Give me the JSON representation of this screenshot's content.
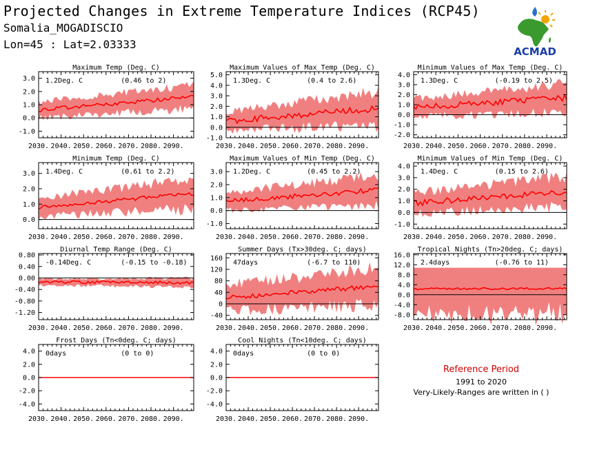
{
  "header": {
    "title": "Projected Changes in Extreme Temperature Indices (RCP45)",
    "location": "Somalia_MOGADISCIO",
    "coords": "Lon=45 : Lat=2.03333"
  },
  "logo": {
    "text": "ACMAD",
    "icon": "africa-map-with-raindrop-and-sun-icon",
    "colors": {
      "africa": "#3a9a2e",
      "text": "#1a3ea8",
      "sun": "#f0a400",
      "drop": "#2a6fd0"
    }
  },
  "reference": {
    "title": "Reference Period",
    "period": "1991 to 2020",
    "note": "Very-Likely-Ranges are written in ( )"
  },
  "colors": {
    "band": "#f08080",
    "line": "#ff0000",
    "zero": "#000000"
  },
  "chart_data": [
    {
      "type": "area",
      "title": "Maximum Temp (Deg. C)",
      "value": "1.2Deg. C",
      "range": "(0.46 to 2)",
      "xticks": [
        "2030.",
        "2040.",
        "2050.",
        "2060.",
        "2070.",
        "2080.",
        "2090."
      ],
      "xlim": [
        2030,
        2099
      ],
      "yticks": [
        "-1.0",
        "0.0",
        "1.0",
        "2.0",
        "3.0"
      ],
      "ylim": [
        -1.5,
        3.5
      ],
      "trend": {
        "start": 0.6,
        "end": 1.6
      },
      "spread": {
        "start": 0.6,
        "end": 0.9
      },
      "noise": 0.15
    },
    {
      "type": "area",
      "title": "Maximum Values of Max Temp (Deg. C)",
      "value": "1.3Deg. C",
      "range": "(0.4 to 2.6)",
      "xticks": [
        "2030.",
        "2040.",
        "2050.",
        "2060.",
        "2070.",
        "2080.",
        "2090."
      ],
      "xlim": [
        2030,
        2099
      ],
      "yticks": [
        "-1.0",
        "0.0",
        "1.0",
        "2.0",
        "3.0",
        "4.0",
        "5.0"
      ],
      "ylim": [
        -1.0,
        5.3
      ],
      "trend": {
        "start": 0.6,
        "end": 1.8
      },
      "spread": {
        "start": 0.9,
        "end": 1.6
      },
      "noise": 0.3
    },
    {
      "type": "area",
      "title": "Minimum Values of Max Temp (Deg. C)",
      "value": "1.3Deg. C",
      "range": "(-0.19 to 2.5)",
      "xticks": [
        "2030.",
        "2040.",
        "2050.",
        "2060.",
        "2070.",
        "2080.",
        "2090."
      ],
      "xlim": [
        2030,
        2099
      ],
      "yticks": [
        "-2.0",
        "-1.0",
        "0.0",
        "1.0",
        "2.0",
        "3.0",
        "4.0"
      ],
      "ylim": [
        -2.3,
        4.3
      ],
      "trend": {
        "start": 0.7,
        "end": 1.7
      },
      "spread": {
        "start": 0.9,
        "end": 1.4
      },
      "noise": 0.3
    },
    {
      "type": "area",
      "title": "Minimum Temp (Deg. C)",
      "value": "1.4Deg. C",
      "range": "(0.61 to 2.2)",
      "xticks": [
        "2030.",
        "2040.",
        "2050.",
        "2060.",
        "2070.",
        "2080.",
        "2090."
      ],
      "xlim": [
        2030,
        2099
      ],
      "yticks": [
        "0.0",
        "1.0",
        "2.0",
        "3.0"
      ],
      "ylim": [
        -0.6,
        3.7
      ],
      "trend": {
        "start": 0.8,
        "end": 1.7
      },
      "spread": {
        "start": 0.6,
        "end": 1.0
      },
      "noise": 0.12
    },
    {
      "type": "area",
      "title": "Maximum Values of Min Temp (Deg. C)",
      "value": "1.2Deg. C",
      "range": "(0.45 to 2.2)",
      "xticks": [
        "2030.",
        "2040.",
        "2050.",
        "2060.",
        "2070.",
        "2080.",
        "2090."
      ],
      "xlim": [
        2030,
        2099
      ],
      "yticks": [
        "-1.0",
        "0.0",
        "1.0",
        "2.0",
        "3.0"
      ],
      "ylim": [
        -1.4,
        3.7
      ],
      "trend": {
        "start": 0.7,
        "end": 1.6
      },
      "spread": {
        "start": 0.7,
        "end": 1.1
      },
      "noise": 0.18
    },
    {
      "type": "area",
      "title": "Minimum Values of Min Temp (Deg. C)",
      "value": "1.4Deg. C",
      "range": "(0.15 to 2.6)",
      "xticks": [
        "2030.",
        "2040.",
        "2050.",
        "2060.",
        "2070.",
        "2080.",
        "2090."
      ],
      "xlim": [
        2030,
        2099
      ],
      "yticks": [
        "-1.0",
        "0.0",
        "1.0",
        "2.0",
        "3.0",
        "4.0"
      ],
      "ylim": [
        -1.4,
        4.3
      ],
      "trend": {
        "start": 0.8,
        "end": 1.8
      },
      "spread": {
        "start": 0.9,
        "end": 1.3
      },
      "noise": 0.25
    },
    {
      "type": "area",
      "title": "Diurnal Temp Range (Deg. C)",
      "value": "-0.14Deg. C",
      "range": "(-0.15 to -0.18)",
      "xticks": [
        "2030.",
        "2040.",
        "2050.",
        "2060.",
        "2070.",
        "2080.",
        "2090."
      ],
      "xlim": [
        2030,
        2099
      ],
      "yticks": [
        "-1.20",
        "-0.80",
        "-0.40",
        "0.00",
        "0.40",
        "0.80"
      ],
      "ylim": [
        -1.45,
        0.85
      ],
      "trend": {
        "start": -0.14,
        "end": -0.16
      },
      "spread": {
        "start": 0.12,
        "end": 0.15
      },
      "noise": 0.05
    },
    {
      "type": "area",
      "title": "Summer Days (Tx>30deg. C; days)",
      "value": "47days",
      "range": "(-6.7 to 110)",
      "xticks": [
        "2030.",
        "2040.",
        "2050.",
        "2060.",
        "2070.",
        "2080.",
        "2090."
      ],
      "xlim": [
        2030,
        2099
      ],
      "yticks": [
        "-40",
        "0",
        "40",
        "80",
        "120",
        "160"
      ],
      "ylim": [
        -55,
        175
      ],
      "trend": {
        "start": 20,
        "end": 62
      },
      "spread": {
        "start": 45,
        "end": 65
      },
      "noise": 8
    },
    {
      "type": "area",
      "title": "Tropical Nights (Tn>20deg. C; days)",
      "value": "2.4days",
      "range": "(-0.76 to 11)",
      "xticks": [
        "2030.",
        "2040.",
        "2050.",
        "2060.",
        "2070.",
        "2080.",
        "2090."
      ],
      "xlim": [
        2030,
        2099
      ],
      "yticks": [
        "-8.0",
        "-4.0",
        "0.0",
        "4.0",
        "8.0",
        "12.0",
        "16.0"
      ],
      "ylim": [
        -10,
        16.5
      ],
      "trend": {
        "start": 2.3,
        "end": 2.5
      },
      "spread": {
        "start": 8.5,
        "end": 8.5
      },
      "noise": 0.4,
      "band_top": 10.8
    },
    {
      "type": "area",
      "title": "Frost Days (Tn<0deg. C; days)",
      "value": "0days",
      "range": "(0 to 0)",
      "xticks": [
        "2030.",
        "2040.",
        "2050.",
        "2060.",
        "2070.",
        "2080.",
        "2090."
      ],
      "xlim": [
        2030,
        2099
      ],
      "yticks": [
        "-4.0",
        "-2.0",
        "0.0",
        "2.0",
        "4.0"
      ],
      "ylim": [
        -5,
        5
      ],
      "trend": {
        "start": 0,
        "end": 0
      },
      "spread": {
        "start": 0,
        "end": 0
      },
      "noise": 0
    },
    {
      "type": "area",
      "title": "Cool Nights (Tn<10deg. C; days)",
      "value": "0days",
      "range": "(0 to 0)",
      "xticks": [
        "2030.",
        "2040.",
        "2050.",
        "2060.",
        "2070.",
        "2080.",
        "2090."
      ],
      "xlim": [
        2030,
        2099
      ],
      "yticks": [
        "-4.0",
        "-2.0",
        "0.0",
        "2.0",
        "4.0"
      ],
      "ylim": [
        -5,
        5
      ],
      "trend": {
        "start": 0,
        "end": 0
      },
      "spread": {
        "start": 0,
        "end": 0
      },
      "noise": 0
    }
  ]
}
